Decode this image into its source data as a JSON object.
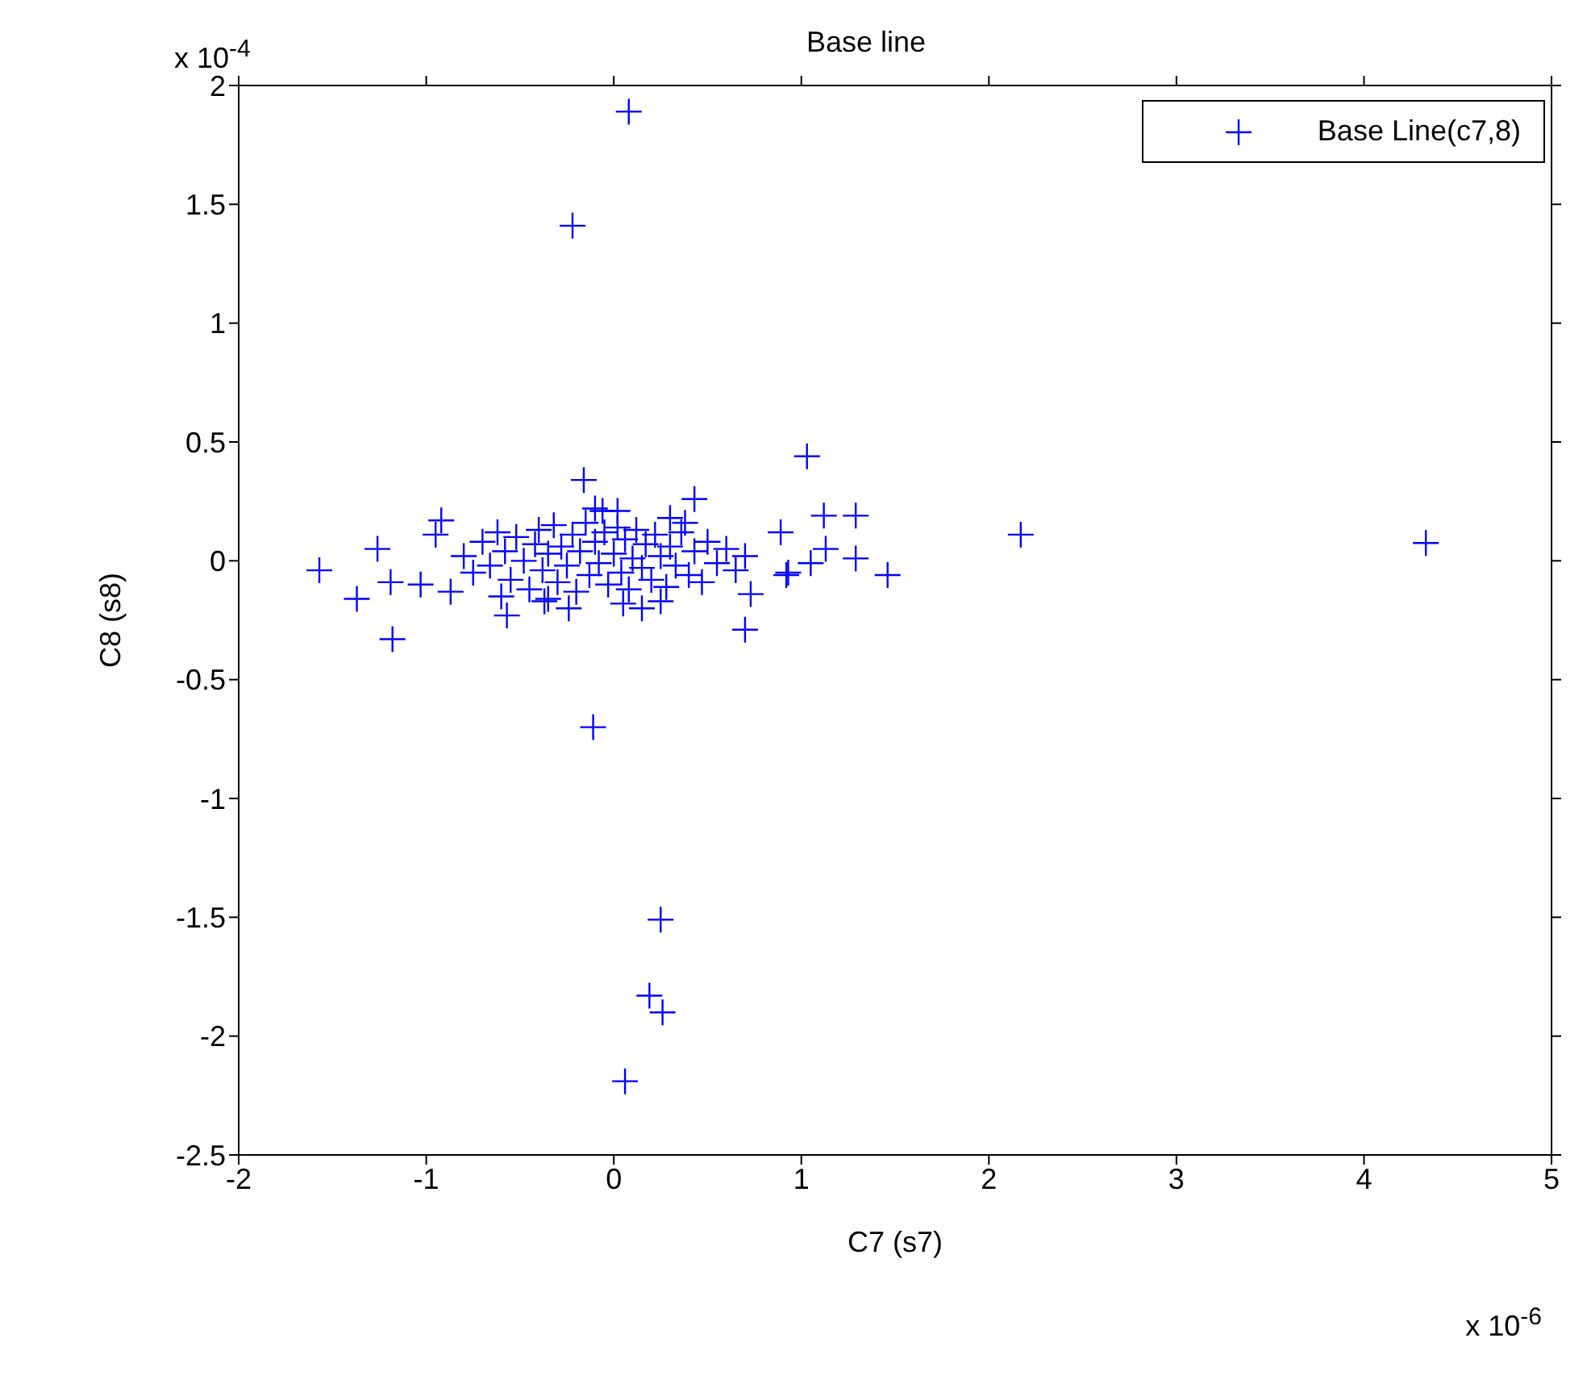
{
  "chart_data": {
    "type": "scatter",
    "title": "Base line",
    "xlabel": "C7 (s7)",
    "ylabel": "C8 (s8)",
    "annotations": [
      "x 10$^{-4}$",
      "x 10$^{-6}$"
    ],
    "xlim": [
      -2,
      5
    ],
    "xticks": [
      -2,
      -1,
      0,
      1,
      2,
      3,
      4,
      5
    ],
    "ylim": [
      -2.5,
      2
    ],
    "yticks": [
      -2.5,
      -2,
      -1.5,
      -1,
      -0.5,
      0,
      0.5,
      1,
      1.5,
      2
    ],
    "legend": "top right",
    "marker": "cross",
    "series": [
      {
        "name": "Base Line(c7,8)",
        "color": "#0000ff",
        "x": [
          0.08,
          -0.22,
          -0.11,
          0.25,
          0.19,
          0.26,
          0.06,
          1.03,
          1.12,
          1.29,
          2.17,
          4.33,
          1.29,
          1.46,
          0.89,
          0.92,
          1.13,
          1.05,
          0.73,
          -1.57,
          -1.37,
          -1.18,
          -1.26,
          -1.19,
          -0.92,
          -0.95,
          -1.03,
          -0.87,
          -0.16,
          0.43,
          -0.57,
          -0.24,
          0.15,
          0.7,
          0.93,
          -0.37,
          -0.06,
          0.02,
          0.3,
          -0.8,
          -0.75,
          -0.7,
          -0.66,
          -0.62,
          -0.58,
          -0.55,
          -0.52,
          -0.48,
          -0.45,
          -0.42,
          -0.4,
          -0.38,
          -0.35,
          -0.32,
          -0.3,
          -0.28,
          -0.25,
          -0.22,
          -0.2,
          -0.18,
          -0.15,
          -0.13,
          -0.1,
          -0.08,
          -0.05,
          -0.03,
          0,
          0.02,
          0.04,
          0.06,
          0.08,
          0.1,
          0.12,
          0.15,
          0.17,
          0.2,
          0.22,
          0.25,
          0.28,
          0.3,
          0.33,
          0.36,
          0.4,
          0.43,
          0.47,
          0.5,
          0.55,
          0.6,
          0.65,
          0.7,
          -0.6,
          -0.35,
          0.05,
          0.38,
          -0.1,
          0.25
        ],
        "values": [
          1.89,
          1.41,
          -0.7,
          -1.51,
          -1.83,
          -1.9,
          -2.19,
          0.44,
          0.19,
          0.19,
          0.11,
          0.075,
          0.01,
          -0.06,
          0.12,
          -0.06,
          0.05,
          -0.01,
          -0.14,
          -0.04,
          -0.16,
          -0.33,
          0.05,
          -0.09,
          0.17,
          0.11,
          -0.1,
          -0.13,
          0.34,
          0.26,
          -0.23,
          -0.2,
          -0.2,
          -0.29,
          -0.05,
          -0.17,
          0.21,
          0.21,
          0.18,
          0.02,
          -0.05,
          0.08,
          -0.02,
          0.12,
          0.04,
          -0.08,
          0.1,
          0,
          -0.12,
          0.07,
          0.13,
          -0.04,
          0.03,
          0.15,
          -0.09,
          0.06,
          -0.02,
          0.11,
          -0.13,
          0.04,
          0.16,
          -0.06,
          0.08,
          -0.01,
          0.12,
          -0.1,
          0.03,
          0.14,
          -0.05,
          0.09,
          -0.12,
          0.01,
          0.13,
          -0.03,
          0.07,
          -0.08,
          0.11,
          0.02,
          -0.11,
          0.06,
          -0.02,
          0.12,
          -0.06,
          0.04,
          -0.09,
          0.08,
          -0.01,
          0.05,
          -0.04,
          0.02,
          -0.15,
          -0.16,
          -0.18,
          0.16,
          0.22,
          -0.17
        ]
      }
    ]
  }
}
